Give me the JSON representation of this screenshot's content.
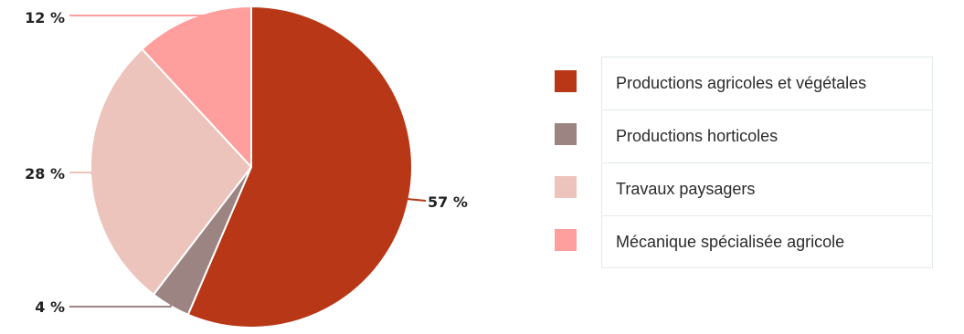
{
  "chart_data": {
    "type": "pie",
    "start_angle_deg": 0,
    "direction": "clockwise",
    "legend_position": "right",
    "slices": [
      {
        "name": "Productions agricoles et végétales",
        "value": 57,
        "label": "57 %",
        "color": "#b83716"
      },
      {
        "name": "Productions horticoles",
        "value": 4,
        "label": "4 %",
        "color": "#9b8481"
      },
      {
        "name": "Travaux paysagers",
        "value": 28,
        "label": "28 %",
        "color": "#ecc4bc"
      },
      {
        "name": "Mécanique spécialisée agricole",
        "value": 12,
        "label": "12 %",
        "color": "#fe9e9d"
      }
    ]
  }
}
